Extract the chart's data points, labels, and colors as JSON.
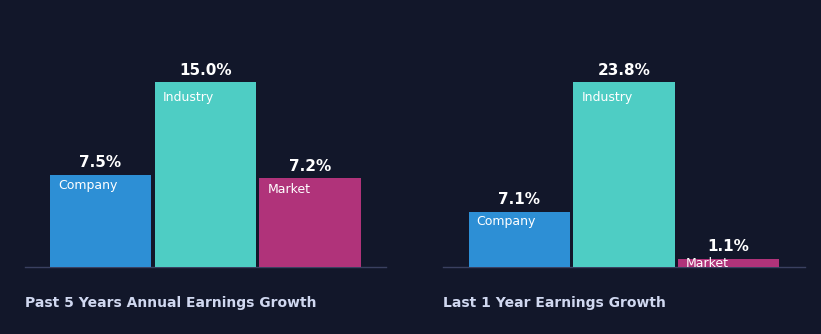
{
  "background_color": "#12172a",
  "groups": [
    {
      "title": "Past 5 Years Annual Earnings Growth",
      "bars": [
        {
          "label": "Company",
          "value": 7.5,
          "color": "#2d8fd5"
        },
        {
          "label": "Industry",
          "value": 15.0,
          "color": "#4ecdc4"
        },
        {
          "label": "Market",
          "value": 7.2,
          "color": "#b0337a"
        }
      ]
    },
    {
      "title": "Last 1 Year Earnings Growth",
      "bars": [
        {
          "label": "Company",
          "value": 7.1,
          "color": "#2d8fd5"
        },
        {
          "label": "Industry",
          "value": 23.8,
          "color": "#4ecdc4"
        },
        {
          "label": "Market",
          "value": 1.1,
          "color": "#b0337a"
        }
      ]
    }
  ],
  "value_fontsize": 11,
  "label_fontsize": 9,
  "title_fontsize": 10,
  "text_color": "#ffffff",
  "title_color": "#d0d8f0",
  "bar_width": 0.28,
  "bar_gap": 0.01
}
